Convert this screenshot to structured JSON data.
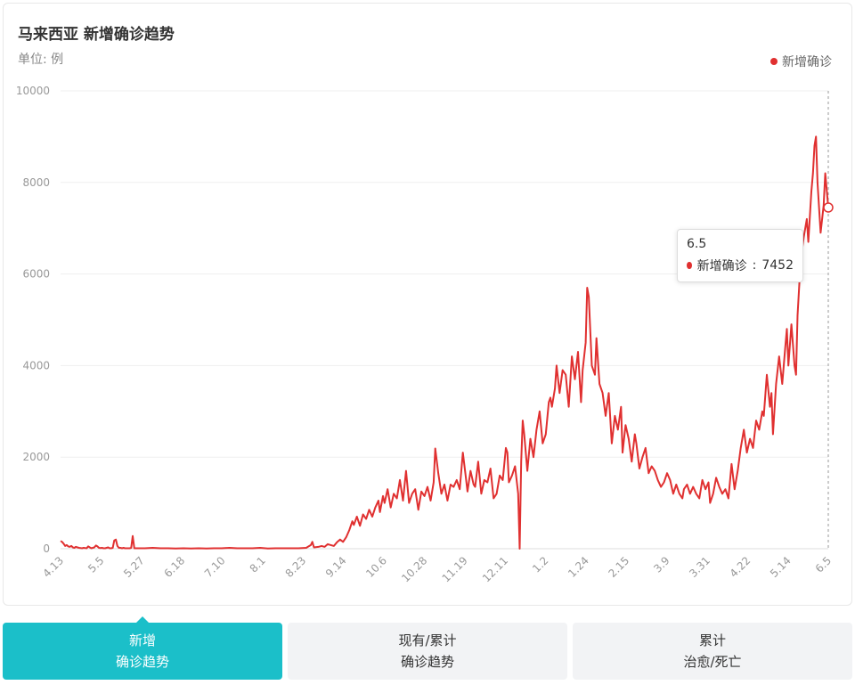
{
  "title": "马来西亚 新增确诊趋势",
  "unit_label": "单位: 例",
  "legend_label": "新增确诊",
  "tooltip": {
    "date": "6.5",
    "series_label": "新增确诊",
    "value": "7452"
  },
  "tabs": [
    {
      "line1": "新增",
      "line2": "确诊趋势",
      "active": true
    },
    {
      "line1": "现有/累计",
      "line2": "确诊趋势",
      "active": false
    },
    {
      "line1": "累计",
      "line2": "治愈/死亡",
      "active": false
    }
  ],
  "colors": {
    "series": "#e03030",
    "accent": "#1bbfc9",
    "grid": "#efefef",
    "axis_text": "#999999"
  },
  "chart_data": {
    "type": "line",
    "title": "马来西亚 新增确诊趋势",
    "ylabel": "单位: 例",
    "ylim": [
      0,
      10000
    ],
    "y_ticks": [
      0,
      2000,
      4000,
      6000,
      8000,
      10000
    ],
    "x_tick_labels": [
      "4.13",
      "5.5",
      "5.27",
      "6.18",
      "7.10",
      "8.1",
      "8.23",
      "9.14",
      "10.6",
      "10.28",
      "11.19",
      "12.11",
      "1.2",
      "1.24",
      "2.15",
      "3.9",
      "3.31",
      "4.22",
      "5.14",
      "6.5"
    ],
    "highlight": {
      "x": "6.5",
      "y": 7452
    },
    "series": [
      {
        "name": "新增确诊",
        "points": [
          [
            0,
            170
          ],
          [
            1,
            150
          ],
          [
            2,
            110
          ],
          [
            3,
            60
          ],
          [
            4,
            80
          ],
          [
            5,
            50
          ],
          [
            6,
            40
          ],
          [
            7,
            60
          ],
          [
            8,
            30
          ],
          [
            9,
            20
          ],
          [
            10,
            40
          ],
          [
            11,
            30
          ],
          [
            12,
            20
          ],
          [
            13,
            15
          ],
          [
            14,
            10
          ],
          [
            15,
            20
          ],
          [
            16,
            15
          ],
          [
            17,
            10
          ],
          [
            18,
            50
          ],
          [
            19,
            30
          ],
          [
            20,
            10
          ],
          [
            21,
            20
          ],
          [
            22,
            30
          ],
          [
            23,
            70
          ],
          [
            24,
            50
          ],
          [
            25,
            20
          ],
          [
            26,
            15
          ],
          [
            27,
            20
          ],
          [
            28,
            10
          ],
          [
            29,
            10
          ],
          [
            30,
            20
          ],
          [
            31,
            30
          ],
          [
            32,
            10
          ],
          [
            33,
            10
          ],
          [
            34,
            20
          ],
          [
            35,
            180
          ],
          [
            36,
            200
          ],
          [
            37,
            60
          ],
          [
            38,
            20
          ],
          [
            39,
            20
          ],
          [
            40,
            10
          ],
          [
            41,
            20
          ],
          [
            42,
            10
          ],
          [
            43,
            10
          ],
          [
            44,
            10
          ],
          [
            45,
            10
          ],
          [
            46,
            20
          ],
          [
            47,
            277
          ],
          [
            48,
            10
          ],
          [
            49,
            10
          ],
          [
            55,
            10
          ],
          [
            60,
            20
          ],
          [
            65,
            10
          ],
          [
            70,
            10
          ],
          [
            75,
            5
          ],
          [
            80,
            10
          ],
          [
            85,
            5
          ],
          [
            90,
            10
          ],
          [
            95,
            5
          ],
          [
            100,
            10
          ],
          [
            105,
            10
          ],
          [
            110,
            20
          ],
          [
            115,
            10
          ],
          [
            120,
            10
          ],
          [
            125,
            10
          ],
          [
            130,
            20
          ],
          [
            135,
            5
          ],
          [
            140,
            10
          ],
          [
            145,
            10
          ],
          [
            150,
            10
          ],
          [
            155,
            10
          ],
          [
            160,
            20
          ],
          [
            163,
            80
          ],
          [
            164,
            150
          ],
          [
            165,
            30
          ],
          [
            168,
            40
          ],
          [
            170,
            60
          ],
          [
            172,
            40
          ],
          [
            174,
            100
          ],
          [
            176,
            80
          ],
          [
            178,
            60
          ],
          [
            180,
            140
          ],
          [
            182,
            200
          ],
          [
            184,
            150
          ],
          [
            186,
            250
          ],
          [
            188,
            400
          ],
          [
            190,
            600
          ],
          [
            191,
            520
          ],
          [
            193,
            700
          ],
          [
            195,
            500
          ],
          [
            197,
            750
          ],
          [
            199,
            650
          ],
          [
            201,
            850
          ],
          [
            203,
            700
          ],
          [
            205,
            900
          ],
          [
            207,
            1050
          ],
          [
            208,
            800
          ],
          [
            210,
            1150
          ],
          [
            211,
            1000
          ],
          [
            213,
            1300
          ],
          [
            215,
            900
          ],
          [
            217,
            1200
          ],
          [
            219,
            1100
          ],
          [
            221,
            1500
          ],
          [
            223,
            1050
          ],
          [
            225,
            1700
          ],
          [
            227,
            1000
          ],
          [
            229,
            1200
          ],
          [
            231,
            1300
          ],
          [
            233,
            850
          ],
          [
            235,
            1250
          ],
          [
            237,
            1150
          ],
          [
            239,
            1350
          ],
          [
            241,
            1050
          ],
          [
            243,
            1450
          ],
          [
            244,
            2188
          ],
          [
            246,
            1650
          ],
          [
            248,
            1200
          ],
          [
            250,
            1400
          ],
          [
            252,
            1050
          ],
          [
            254,
            1400
          ],
          [
            256,
            1350
          ],
          [
            258,
            1500
          ],
          [
            260,
            1300
          ],
          [
            262,
            2100
          ],
          [
            264,
            1550
          ],
          [
            265,
            1250
          ],
          [
            267,
            1700
          ],
          [
            269,
            1400
          ],
          [
            270,
            1350
          ],
          [
            272,
            1900
          ],
          [
            274,
            1200
          ],
          [
            276,
            1500
          ],
          [
            278,
            1450
          ],
          [
            280,
            1750
          ],
          [
            282,
            1100
          ],
          [
            284,
            1200
          ],
          [
            286,
            1600
          ],
          [
            288,
            1500
          ],
          [
            290,
            2200
          ],
          [
            291,
            2100
          ],
          [
            292,
            1450
          ],
          [
            294,
            1600
          ],
          [
            296,
            1800
          ],
          [
            298,
            1200
          ],
          [
            299,
            0
          ],
          [
            300,
            1900
          ],
          [
            301,
            2800
          ],
          [
            302,
            2500
          ],
          [
            304,
            1700
          ],
          [
            306,
            2400
          ],
          [
            308,
            2000
          ],
          [
            310,
            2600
          ],
          [
            312,
            3000
          ],
          [
            314,
            2300
          ],
          [
            316,
            2500
          ],
          [
            318,
            3200
          ],
          [
            319,
            3300
          ],
          [
            320,
            3100
          ],
          [
            322,
            3500
          ],
          [
            323,
            4000
          ],
          [
            325,
            3400
          ],
          [
            327,
            3900
          ],
          [
            329,
            3800
          ],
          [
            331,
            3100
          ],
          [
            333,
            4200
          ],
          [
            335,
            3700
          ],
          [
            337,
            4300
          ],
          [
            339,
            3200
          ],
          [
            340,
            3900
          ],
          [
            342,
            4500
          ],
          [
            343,
            5700
          ],
          [
            344,
            5500
          ],
          [
            346,
            4000
          ],
          [
            348,
            3800
          ],
          [
            349,
            4600
          ],
          [
            351,
            3600
          ],
          [
            353,
            3400
          ],
          [
            355,
            2900
          ],
          [
            357,
            3400
          ],
          [
            359,
            2300
          ],
          [
            361,
            2900
          ],
          [
            363,
            2600
          ],
          [
            365,
            3100
          ],
          [
            366,
            2100
          ],
          [
            368,
            2700
          ],
          [
            370,
            2400
          ],
          [
            372,
            1900
          ],
          [
            374,
            2500
          ],
          [
            375,
            2300
          ],
          [
            377,
            1750
          ],
          [
            379,
            2000
          ],
          [
            381,
            2200
          ],
          [
            383,
            1650
          ],
          [
            385,
            1800
          ],
          [
            387,
            1700
          ],
          [
            389,
            1500
          ],
          [
            391,
            1350
          ],
          [
            393,
            1450
          ],
          [
            395,
            1650
          ],
          [
            397,
            1500
          ],
          [
            399,
            1200
          ],
          [
            401,
            1400
          ],
          [
            403,
            1200
          ],
          [
            405,
            1100
          ],
          [
            406,
            1300
          ],
          [
            408,
            1400
          ],
          [
            410,
            1200
          ],
          [
            412,
            1350
          ],
          [
            414,
            1200
          ],
          [
            416,
            1100
          ],
          [
            418,
            1500
          ],
          [
            420,
            1300
          ],
          [
            422,
            1450
          ],
          [
            423,
            1000
          ],
          [
            425,
            1200
          ],
          [
            427,
            1550
          ],
          [
            429,
            1350
          ],
          [
            431,
            1200
          ],
          [
            433,
            1300
          ],
          [
            435,
            1100
          ],
          [
            437,
            1850
          ],
          [
            439,
            1300
          ],
          [
            441,
            1700
          ],
          [
            443,
            2200
          ],
          [
            445,
            2600
          ],
          [
            447,
            2100
          ],
          [
            449,
            2400
          ],
          [
            451,
            2200
          ],
          [
            453,
            2800
          ],
          [
            455,
            2600
          ],
          [
            457,
            3000
          ],
          [
            458,
            2900
          ],
          [
            460,
            3800
          ],
          [
            462,
            3100
          ],
          [
            463,
            3400
          ],
          [
            464,
            2500
          ],
          [
            466,
            3600
          ],
          [
            468,
            4200
          ],
          [
            470,
            3600
          ],
          [
            472,
            4400
          ],
          [
            473,
            4800
          ],
          [
            474,
            4000
          ],
          [
            476,
            4900
          ],
          [
            478,
            4000
          ],
          [
            479,
            3800
          ],
          [
            480,
            5100
          ],
          [
            482,
            6300
          ],
          [
            484,
            6800
          ],
          [
            486,
            7200
          ],
          [
            487,
            6700
          ],
          [
            489,
            7800
          ],
          [
            490,
            8200
          ],
          [
            491,
            8800
          ],
          [
            492,
            9000
          ],
          [
            493,
            8000
          ],
          [
            495,
            6900
          ],
          [
            497,
            7500
          ],
          [
            498,
            8200
          ],
          [
            500,
            7452
          ]
        ]
      }
    ],
    "x_index_max": 500
  }
}
